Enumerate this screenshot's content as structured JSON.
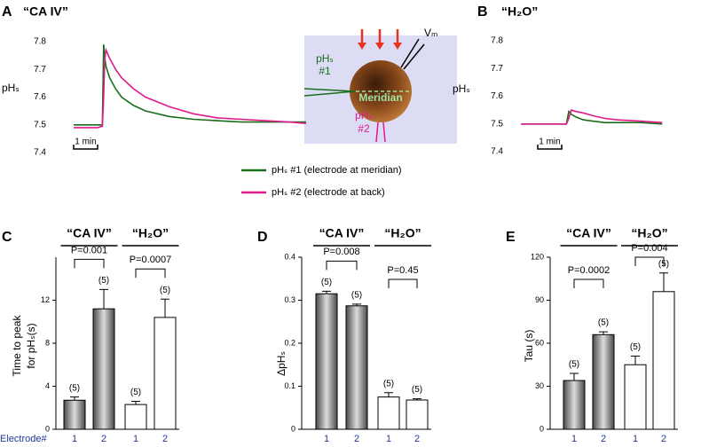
{
  "chart_data": [
    {
      "type": "line",
      "panel": "A",
      "title": "“CA IV”",
      "y_label": "pHₛ",
      "x": [
        0,
        0.5,
        1,
        1.2,
        1.25,
        1.3,
        1.35,
        1.5,
        1.75,
        2,
        2.5,
        3,
        4,
        5,
        6,
        7,
        8,
        9,
        9.7
      ],
      "xlim": [
        0,
        9.7
      ],
      "ylim": [
        7.4,
        7.8
      ],
      "yticks": [
        7.4,
        7.5,
        7.6,
        7.7,
        7.8
      ],
      "scale_bar": {
        "value": 1,
        "label": "1 min"
      },
      "series": [
        {
          "name": "pHₛ #1 (electrode at meridian)",
          "color": "#1a6e1a",
          "values": [
            7.5,
            7.5,
            7.5,
            7.5,
            7.79,
            7.74,
            7.71,
            7.67,
            7.63,
            7.6,
            7.57,
            7.55,
            7.53,
            7.52,
            7.515,
            7.51,
            7.51,
            7.51,
            7.51
          ]
        },
        {
          "name": "pHₛ #2 (electrode at back)",
          "color": "#e0198c",
          "values": [
            7.49,
            7.49,
            7.49,
            7.495,
            7.6,
            7.74,
            7.77,
            7.74,
            7.7,
            7.67,
            7.63,
            7.6,
            7.565,
            7.54,
            7.525,
            7.52,
            7.515,
            7.51,
            7.505
          ]
        }
      ],
      "inset": {
        "electrode_1": [
          "pHₛ",
          "#1"
        ],
        "electrode_2": [
          "pHₛ",
          "#2"
        ],
        "meridian": "Meridian",
        "voltage": "Vₘ"
      }
    },
    {
      "type": "line",
      "panel": "B",
      "title": "“H₂O”",
      "y_label": "pHₛ",
      "x": [
        0,
        1,
        1.9,
        2,
        2.1,
        2.3,
        2.6,
        3,
        3.5,
        4,
        5,
        5.9
      ],
      "xlim": [
        0,
        5.9
      ],
      "ylim": [
        7.4,
        7.8
      ],
      "yticks": [
        7.4,
        7.5,
        7.6,
        7.7,
        7.8
      ],
      "scale_bar": {
        "value": 1,
        "label": "1 min"
      },
      "series": [
        {
          "color": "#1a6e1a",
          "values": [
            7.5,
            7.5,
            7.5,
            7.545,
            7.535,
            7.525,
            7.515,
            7.51,
            7.505,
            7.505,
            7.505,
            7.5
          ]
        },
        {
          "color": "#e0198c",
          "values": [
            7.5,
            7.5,
            7.5,
            7.52,
            7.55,
            7.545,
            7.54,
            7.53,
            7.52,
            7.515,
            7.51,
            7.505
          ]
        }
      ]
    },
    {
      "type": "bar",
      "panel": "C",
      "y_label": [
        "Time to peak",
        "for pHₛ(s)"
      ],
      "x_label": "Electrode#",
      "categories": [
        "1",
        "2"
      ],
      "ylim": [
        0,
        16
      ],
      "yticks": [
        0,
        4,
        8,
        12
      ],
      "series": [
        {
          "name": "“CA IV”",
          "color": "#808080",
          "values": [
            2.7,
            11.2
          ],
          "errors": [
            0.3,
            1.8
          ],
          "n_labels": [
            "(5)",
            "(5)"
          ],
          "comparison": "P=0.001"
        },
        {
          "name": "“H₂O”",
          "color": "#ffffff",
          "values": [
            2.3,
            10.4
          ],
          "errors": [
            0.3,
            1.7
          ],
          "n_labels": [
            "(5)",
            "(5)"
          ],
          "comparison": "P=0.0007"
        }
      ]
    },
    {
      "type": "bar",
      "panel": "D",
      "y_label": [
        "ΔpHₛ"
      ],
      "categories": [
        "1",
        "2"
      ],
      "ylim": [
        0,
        0.4
      ],
      "yticks": [
        0.0,
        0.1,
        0.2,
        0.3,
        0.4
      ],
      "series": [
        {
          "name": "“CA IV”",
          "color": "#808080",
          "values": [
            0.315,
            0.287
          ],
          "errors": [
            0.006,
            0.004
          ],
          "n_labels": [
            "(5)",
            "(5)"
          ],
          "comparison": "P=0.008"
        },
        {
          "name": "“H₂O”",
          "color": "#ffffff",
          "values": [
            0.075,
            0.068
          ],
          "errors": [
            0.01,
            0.003
          ],
          "n_labels": [
            "(5)",
            "(5)"
          ],
          "comparison": "P=0.45"
        }
      ]
    },
    {
      "type": "bar",
      "panel": "E",
      "y_label": [
        "Tau (s)"
      ],
      "categories": [
        "1",
        "2"
      ],
      "ylim": [
        0,
        120
      ],
      "yticks": [
        0,
        30,
        60,
        90,
        120
      ],
      "series": [
        {
          "name": "“CA IV”",
          "color": "#808080",
          "values": [
            34,
            66
          ],
          "errors": [
            5,
            2
          ],
          "n_labels": [
            "(5)",
            "(5)"
          ],
          "comparison": "P=0.0002"
        },
        {
          "name": "“H₂O”",
          "color": "#ffffff",
          "values": [
            45,
            96
          ],
          "errors": [
            6,
            13
          ],
          "n_labels": [
            "(5)",
            "(5)"
          ],
          "comparison": "P=0.004"
        }
      ]
    }
  ]
}
